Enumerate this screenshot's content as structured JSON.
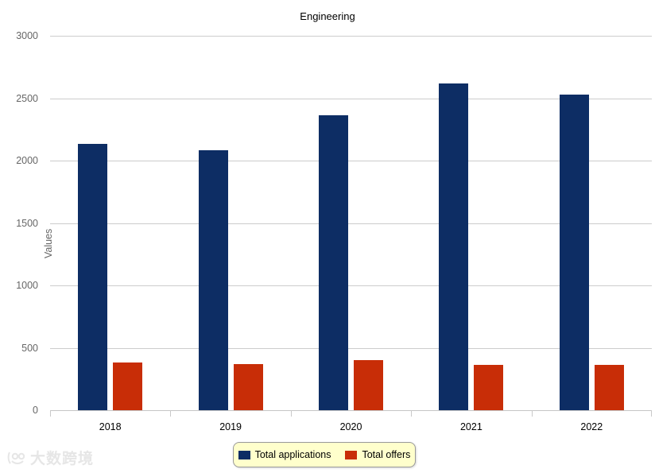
{
  "title": "Engineering",
  "watermark": {
    "text": "大数跨境",
    "logo": "swirl-100-logo"
  },
  "legend": {
    "items": [
      {
        "label": "Total applications",
        "color": "#0d2d64"
      },
      {
        "label": "Total offers",
        "color": "#c82d07"
      }
    ]
  },
  "chart_data": {
    "type": "bar",
    "title": "Engineering",
    "categories": [
      "2018",
      "2019",
      "2020",
      "2021",
      "2022"
    ],
    "series": [
      {
        "name": "Total applications",
        "color": "#0d2d64",
        "values": [
          2135,
          2085,
          2365,
          2620,
          2530
        ]
      },
      {
        "name": "Total offers",
        "color": "#c82d07",
        "values": [
          385,
          370,
          400,
          365,
          360
        ]
      }
    ],
    "xlabel": "",
    "ylabel": "Values",
    "ylim": [
      0,
      3000
    ],
    "yticks": [
      0,
      500,
      1000,
      1500,
      2000,
      2500,
      3000
    ],
    "grid": true,
    "gridline_color": "#cccccc",
    "legend_position": "bottom-center",
    "background": "#ffffff"
  }
}
